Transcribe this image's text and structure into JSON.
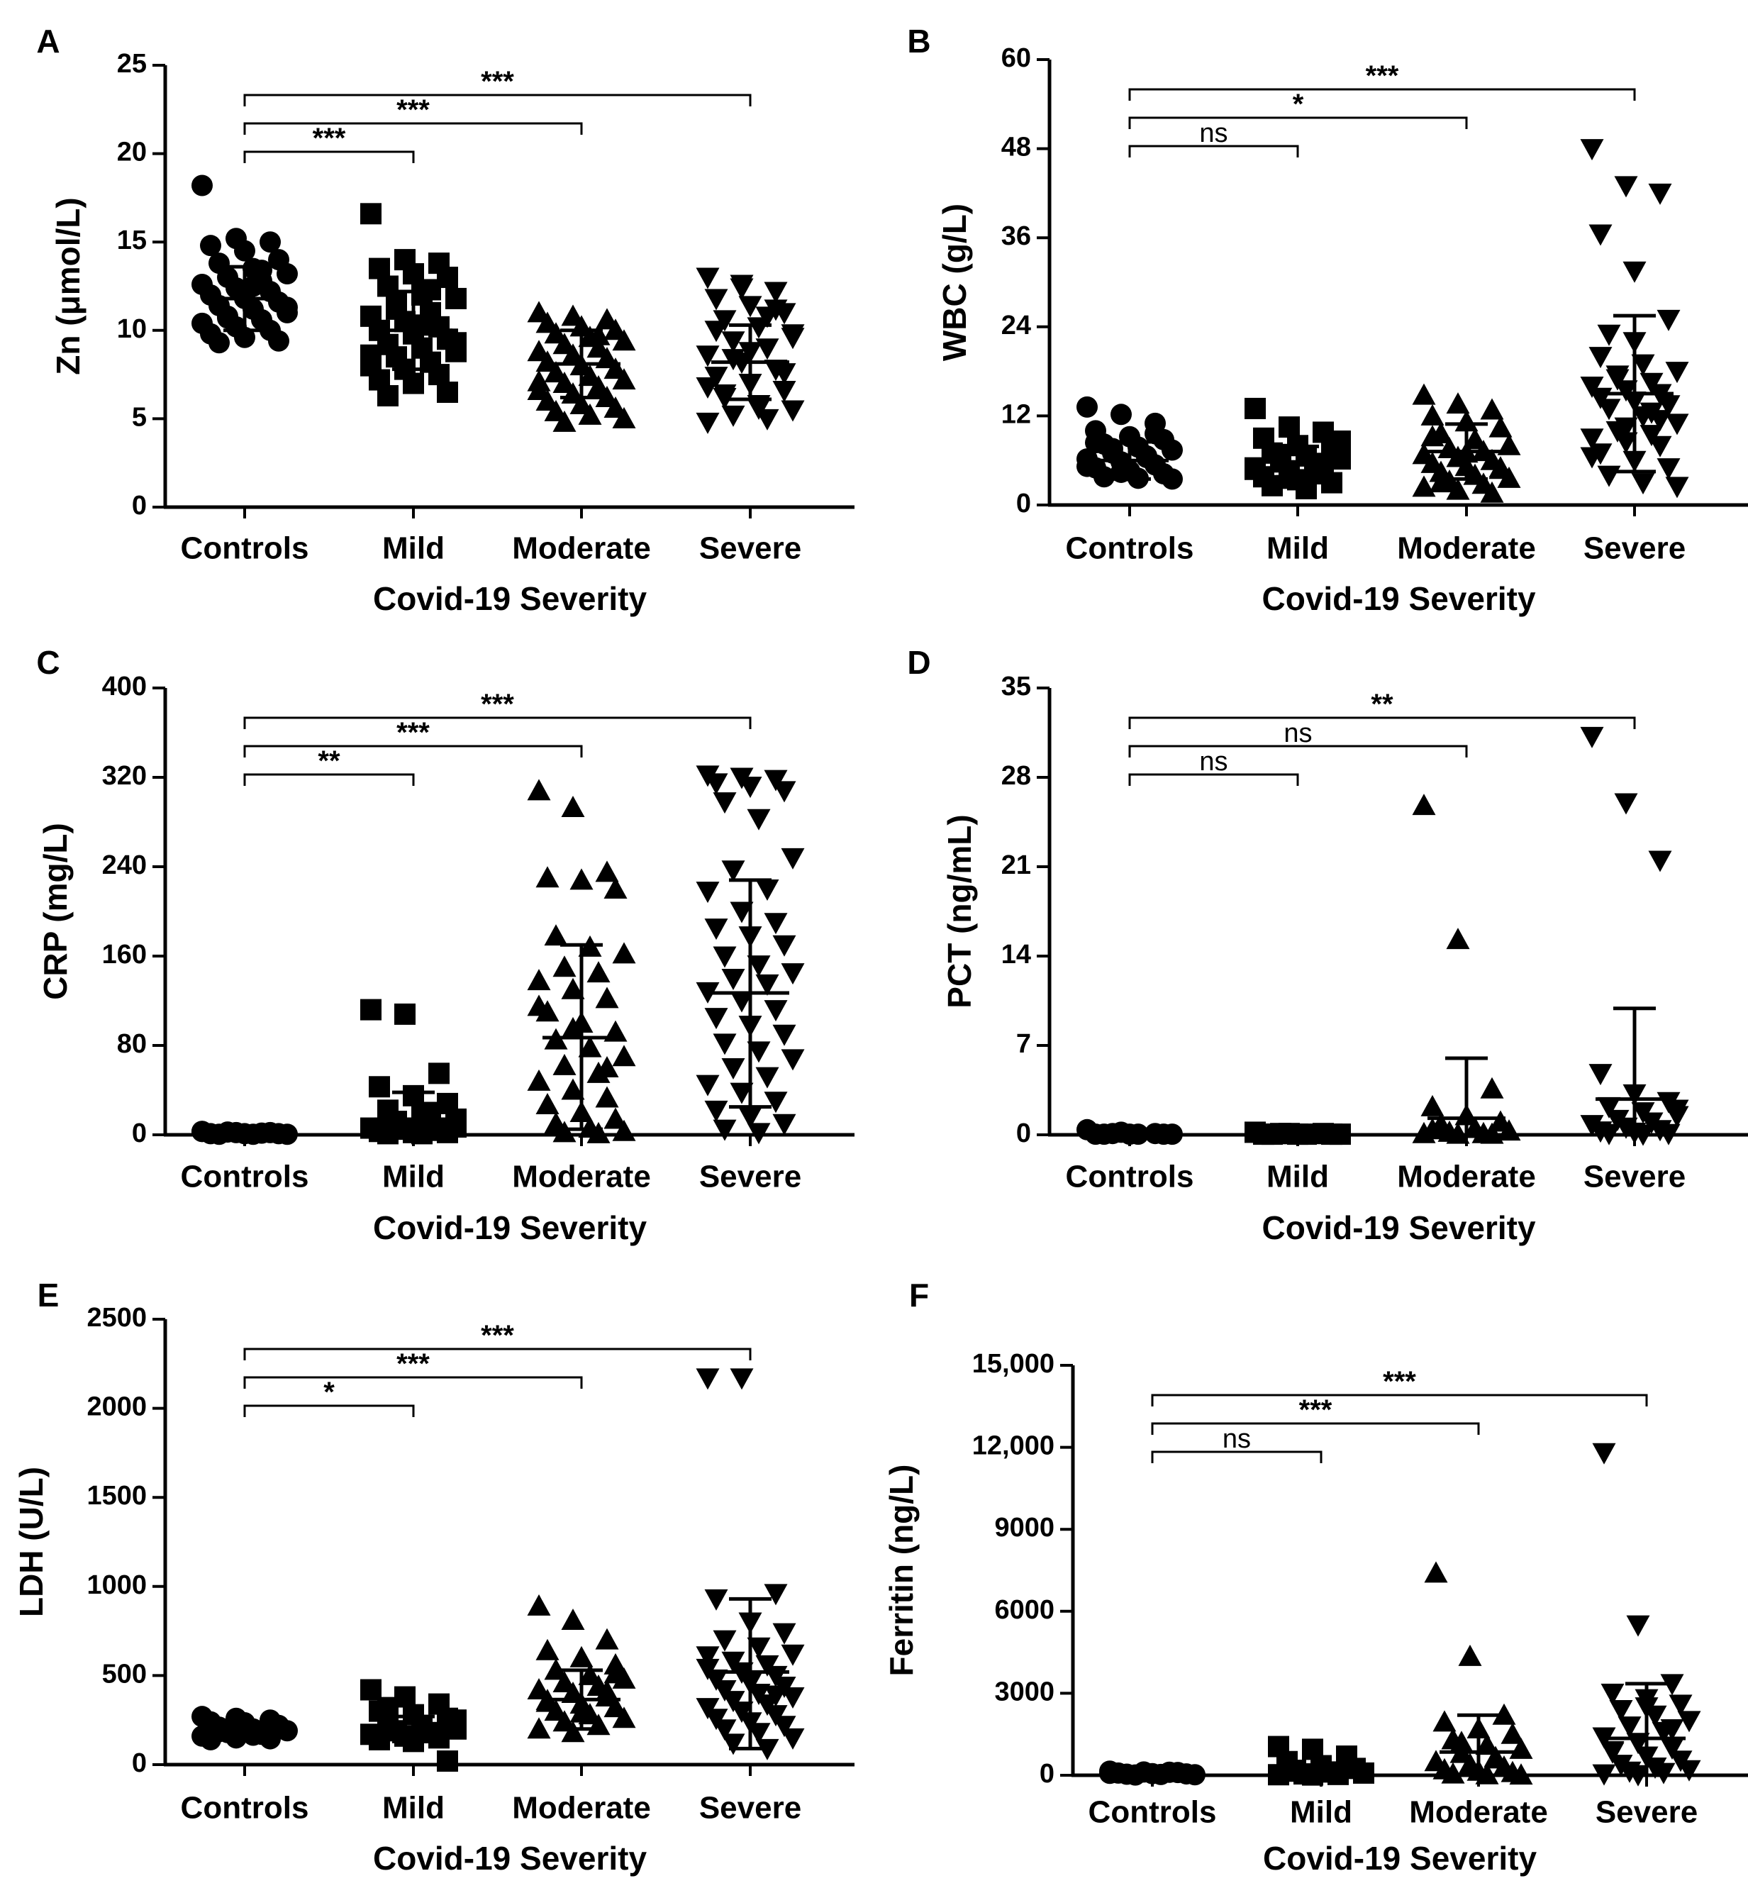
{
  "figure": {
    "panels": [
      {
        "letter": "A",
        "title": "Zn (μmol/L)",
        "xlabel": "Covid-19 Severity",
        "ylim": [
          0,
          25
        ],
        "yticks": [
          0,
          5,
          10,
          15,
          20,
          25
        ],
        "ytick_labels": [
          "0",
          "5",
          "10",
          "15",
          "20",
          "25"
        ]
      },
      {
        "letter": "B",
        "title": "WBC (g/L)",
        "xlabel": "Covid-19 Severity",
        "ylim": [
          0,
          60
        ],
        "yticks": [
          0,
          12,
          24,
          36,
          48,
          60
        ],
        "ytick_labels": [
          "0",
          "12",
          "24",
          "36",
          "48",
          "60"
        ]
      },
      {
        "letter": "C",
        "title": "CRP (mg/L)",
        "xlabel": "Covid-19 Severity",
        "ylim": [
          0,
          400
        ],
        "yticks": [
          0,
          80,
          160,
          240,
          320,
          400
        ],
        "ytick_labels": [
          "0",
          "80",
          "160",
          "240",
          "320",
          "400"
        ]
      },
      {
        "letter": "D",
        "title": "PCT (ng/mL)",
        "xlabel": "Covid-19 Severity",
        "ylim": [
          0,
          35
        ],
        "yticks": [
          0,
          7,
          14,
          21,
          28,
          35
        ],
        "ytick_labels": [
          "0",
          "7",
          "14",
          "21",
          "28",
          "35"
        ]
      },
      {
        "letter": "E",
        "title": "LDH (U/L)",
        "xlabel": "Covid-19 Severity",
        "ylim": [
          0,
          2500
        ],
        "yticks": [
          0,
          500,
          1000,
          1500,
          2000,
          2500
        ],
        "ytick_labels": [
          "0",
          "500",
          "1000",
          "1500",
          "2000",
          "2500"
        ]
      },
      {
        "letter": "F",
        "title": "Ferritin (ng/L)",
        "xlabel": "Covid-19 Severity",
        "ylim": [
          0,
          15000
        ],
        "yticks": [
          0,
          3000,
          6000,
          9000,
          12000,
          15000
        ],
        "ytick_labels": [
          "0",
          "3000",
          "6000",
          "9000",
          "12,000",
          "15,000"
        ]
      }
    ]
  },
  "chart_data": [
    {
      "type": "scatter",
      "panel": "A",
      "ylabel": "Zn (μmol/L)",
      "xlabel": "Covid-19 Severity",
      "categories": [
        "Controls",
        "Mild",
        "Moderate",
        "Severe"
      ],
      "markers": [
        "circle",
        "square",
        "triangle-up",
        "triangle-down"
      ],
      "ylim": [
        0,
        25
      ],
      "means": [
        11.8,
        10.0,
        8.1,
        8.2
      ],
      "error": [
        [
          10.0,
          13.6
        ],
        [
          7.8,
          12.2
        ],
        [
          6.2,
          10.0
        ],
        [
          6.1,
          10.3
        ]
      ],
      "points": [
        [
          18.2,
          15.2,
          15.0,
          14.8,
          14.5,
          14.0,
          13.8,
          13.5,
          13.2,
          13.0,
          12.8,
          12.6,
          12.4,
          12.2,
          12.0,
          11.8,
          11.6,
          11.4,
          11.2,
          11.0,
          10.8,
          10.6,
          10.4,
          10.2,
          10.0,
          9.8,
          9.6,
          9.4,
          9.3,
          12.5,
          11.3,
          10.7,
          13.4
        ],
        [
          16.6,
          14.0,
          13.8,
          13.5,
          13.2,
          13.0,
          12.5,
          12.0,
          11.8,
          11.5,
          11.0,
          10.8,
          10.5,
          10.2,
          10.0,
          9.8,
          9.5,
          9.2,
          9.0,
          8.8,
          8.5,
          8.2,
          8.0,
          7.8,
          7.5,
          7.2,
          7.0,
          6.5,
          6.3,
          10.3,
          9.3,
          11.2,
          12.3,
          8.6
        ],
        [
          11.0,
          10.8,
          10.6,
          10.4,
          10.2,
          10.0,
          9.8,
          9.6,
          9.4,
          9.2,
          9.0,
          8.8,
          8.6,
          8.4,
          8.2,
          8.0,
          7.8,
          7.6,
          7.4,
          7.2,
          7.0,
          6.8,
          6.6,
          6.4,
          6.2,
          6.0,
          5.8,
          5.6,
          5.4,
          5.2,
          5.0,
          4.8,
          9.7,
          7.1
        ],
        [
          13.0,
          12.6,
          12.2,
          11.8,
          11.4,
          11.0,
          10.6,
          10.2,
          9.8,
          9.4,
          9.0,
          8.6,
          8.2,
          7.8,
          7.4,
          7.0,
          6.6,
          6.2,
          5.8,
          5.5,
          5.2,
          5.0,
          4.8,
          12.4,
          11.2,
          10.0,
          8.8,
          7.6,
          6.4,
          5.6,
          9.6,
          8.4,
          10.8,
          6.8
        ]
      ],
      "comparisons": [
        {
          "groups": [
            "Controls",
            "Mild"
          ],
          "label": "***"
        },
        {
          "groups": [
            "Controls",
            "Moderate"
          ],
          "label": "***"
        },
        {
          "groups": [
            "Controls",
            "Severe"
          ],
          "label": "***"
        }
      ]
    },
    {
      "type": "scatter",
      "panel": "B",
      "ylabel": "WBC (g/L)",
      "xlabel": "Covid-19 Severity",
      "categories": [
        "Controls",
        "Mild",
        "Moderate",
        "Severe"
      ],
      "markers": [
        "circle",
        "square",
        "triangle-up",
        "triangle-down"
      ],
      "ylim": [
        0,
        60
      ],
      "means": [
        6.0,
        5.8,
        7.2,
        15.0
      ],
      "error": [
        [
          3.5,
          8.5
        ],
        [
          3.8,
          7.9
        ],
        [
          3.5,
          10.9
        ],
        [
          4.5,
          25.5
        ]
      ],
      "points": [
        [
          13.2,
          12.2,
          11.0,
          10.0,
          9.2,
          8.8,
          8.2,
          7.8,
          7.4,
          7.0,
          6.6,
          6.2,
          5.8,
          5.4,
          5.0,
          4.6,
          4.2,
          3.8,
          3.6,
          3.5,
          7.6,
          6.4,
          5.2,
          4.4,
          9.6,
          8.4
        ],
        [
          13.0,
          10.5,
          9.8,
          9.0,
          8.0,
          7.4,
          7.0,
          6.6,
          6.2,
          5.8,
          5.4,
          5.0,
          4.6,
          4.2,
          3.8,
          3.4,
          3.0,
          2.6,
          2.2,
          8.6,
          6.8,
          5.6,
          4.8,
          3.6
        ],
        [
          14.8,
          13.6,
          12.8,
          12.0,
          11.2,
          10.4,
          9.6,
          8.8,
          8.0,
          7.6,
          7.2,
          6.8,
          6.4,
          6.0,
          5.6,
          5.2,
          4.8,
          4.4,
          4.0,
          3.6,
          3.2,
          2.8,
          2.4,
          2.0,
          1.6,
          9.2,
          7.0,
          5.0,
          3.0
        ],
        [
          48.0,
          43.0,
          42.0,
          36.5,
          31.5,
          25.0,
          23.0,
          19.0,
          18.0,
          17.0,
          16.5,
          16.0,
          15.5,
          15.0,
          14.5,
          14.0,
          13.5,
          13.0,
          12.0,
          11.0,
          10.0,
          9.5,
          9.0,
          8.5,
          8.0,
          7.0,
          6.0,
          5.0,
          4.0,
          3.0,
          2.5,
          17.5,
          12.5,
          6.5,
          10.5,
          11.5,
          20.0,
          22.0
        ]
      ],
      "comparisons": [
        {
          "groups": [
            "Controls",
            "Mild"
          ],
          "label": "ns"
        },
        {
          "groups": [
            "Controls",
            "Moderate"
          ],
          "label": "*"
        },
        {
          "groups": [
            "Controls",
            "Severe"
          ],
          "label": "***"
        }
      ]
    },
    {
      "type": "scatter",
      "panel": "C",
      "ylabel": "CRP (mg/L)",
      "xlabel": "Covid-19 Severity",
      "categories": [
        "Controls",
        "Mild",
        "Moderate",
        "Severe"
      ],
      "markers": [
        "circle",
        "square",
        "triangle-up",
        "triangle-down"
      ],
      "ylim": [
        0,
        400
      ],
      "means": [
        1.5,
        14.0,
        87.0,
        127.0
      ],
      "error": [
        [
          0.5,
          2.5
        ],
        [
          0,
          38
        ],
        [
          5,
          170
        ],
        [
          25,
          228
        ]
      ],
      "points": [
        [
          3,
          2,
          2,
          1,
          1,
          1,
          0.5,
          0.5,
          0.5,
          2.5,
          1.5,
          3
        ],
        [
          112,
          108,
          55,
          43,
          35,
          28,
          22,
          18,
          14,
          10,
          8,
          6,
          5,
          4,
          3,
          2,
          2,
          1,
          1,
          7,
          12,
          20
        ],
        [
          308,
          293,
          235,
          230,
          228,
          220,
          178,
          168,
          162,
          150,
          145,
          138,
          130,
          122,
          110,
          100,
          92,
          85,
          78,
          70,
          62,
          55,
          48,
          40,
          33,
          27,
          20,
          14,
          10,
          6,
          3,
          2,
          1,
          115,
          95,
          60
        ],
        [
          322,
          320,
          318,
          315,
          312,
          308,
          298,
          283,
          248,
          237,
          220,
          218,
          200,
          190,
          185,
          178,
          170,
          160,
          152,
          145,
          140,
          135,
          128,
          120,
          112,
          105,
          98,
          90,
          82,
          75,
          68,
          60,
          52,
          45,
          38,
          30,
          22,
          16,
          10,
          5,
          2
        ]
      ],
      "comparisons": [
        {
          "groups": [
            "Controls",
            "Mild"
          ],
          "label": "**"
        },
        {
          "groups": [
            "Controls",
            "Moderate"
          ],
          "label": "***"
        },
        {
          "groups": [
            "Controls",
            "Severe"
          ],
          "label": "***"
        }
      ]
    },
    {
      "type": "scatter",
      "panel": "D",
      "ylabel": "PCT (ng/mL)",
      "xlabel": "Covid-19 Severity",
      "categories": [
        "Controls",
        "Mild",
        "Moderate",
        "Severe"
      ],
      "markers": [
        "circle",
        "square",
        "triangle-up",
        "triangle-down"
      ],
      "ylim": [
        0,
        35
      ],
      "means": [
        0.05,
        0.05,
        1.3,
        2.8
      ],
      "error": [
        [
          0,
          0.1
        ],
        [
          0,
          0.1
        ],
        [
          0,
          6.0
        ],
        [
          0,
          9.9
        ]
      ],
      "points": [
        [
          0.4,
          0.2,
          0.1,
          0.05,
          0.05,
          0.05,
          0.05,
          0.05,
          0.05,
          0.1
        ],
        [
          0.2,
          0.1,
          0.1,
          0.05,
          0.05,
          0.05,
          0.05,
          0.05,
          0.05,
          0.1
        ],
        [
          25.8,
          15.3,
          3.6,
          2.2,
          1.5,
          1.0,
          0.8,
          0.5,
          0.3,
          0.2,
          0.1,
          0.1,
          0.05,
          0.05,
          0.4
        ],
        [
          31.2,
          26.0,
          21.5,
          4.8,
          3.2,
          2.6,
          2.2,
          1.8,
          1.5,
          1.2,
          1.0,
          0.8,
          0.6,
          0.4,
          0.3,
          0.2,
          0.1,
          0.1,
          0.05,
          2.0
        ]
      ],
      "comparisons": [
        {
          "groups": [
            "Controls",
            "Mild"
          ],
          "label": "ns"
        },
        {
          "groups": [
            "Controls",
            "Moderate"
          ],
          "label": "ns"
        },
        {
          "groups": [
            "Controls",
            "Severe"
          ],
          "label": "**"
        }
      ]
    },
    {
      "type": "scatter",
      "panel": "E",
      "ylabel": "LDH (U/L)",
      "xlabel": "Covid-19 Severity",
      "categories": [
        "Controls",
        "Mild",
        "Moderate",
        "Severe"
      ],
      "markers": [
        "circle",
        "square",
        "triangle-up",
        "triangle-down"
      ],
      "ylim": [
        0,
        2500
      ],
      "means": [
        180,
        200,
        365,
        520
      ],
      "error": [
        [
          140,
          220
        ],
        [
          130,
          270
        ],
        [
          200,
          530
        ],
        [
          90,
          930
        ]
      ],
      "points": [
        [
          270,
          260,
          250,
          240,
          230,
          220,
          210,
          200,
          190,
          180,
          170,
          160,
          150,
          145,
          140,
          235,
          205,
          185,
          165
        ],
        [
          420,
          380,
          340,
          300,
          280,
          260,
          240,
          220,
          200,
          190,
          180,
          170,
          160,
          150,
          140,
          130,
          20,
          320,
          210,
          250
        ],
        [
          890,
          810,
          700,
          640,
          600,
          560,
          530,
          500,
          480,
          460,
          440,
          420,
          400,
          380,
          360,
          340,
          320,
          300,
          280,
          260,
          240,
          220,
          200,
          180,
          410,
          350,
          290,
          510
        ],
        [
          2170,
          2170,
          960,
          930,
          800,
          740,
          700,
          660,
          620,
          580,
          560,
          540,
          520,
          500,
          480,
          460,
          440,
          420,
          400,
          380,
          360,
          340,
          320,
          300,
          280,
          260,
          240,
          220,
          200,
          180,
          150,
          120,
          90,
          610,
          520,
          390
        ]
      ],
      "comparisons": [
        {
          "groups": [
            "Controls",
            "Mild"
          ],
          "label": "*"
        },
        {
          "groups": [
            "Controls",
            "Moderate"
          ],
          "label": "***"
        },
        {
          "groups": [
            "Controls",
            "Severe"
          ],
          "label": "***"
        }
      ]
    },
    {
      "type": "scatter",
      "panel": "F",
      "ylabel": "Ferritin (ng/L)",
      "xlabel": "Covid-19 Severity",
      "categories": [
        "Controls",
        "Mild",
        "Moderate",
        "Severe"
      ],
      "markers": [
        "circle",
        "square",
        "triangle-up",
        "triangle-down"
      ],
      "ylim": [
        0,
        15000
      ],
      "means": [
        50,
        150,
        850,
        1350
      ],
      "error": [
        [
          20,
          80
        ],
        [
          0,
          300
        ],
        [
          0,
          2200
        ],
        [
          0,
          3350
        ]
      ],
      "points": [
        [
          150,
          120,
          100,
          80,
          60,
          50,
          40,
          30,
          20,
          10,
          110,
          70
        ],
        [
          1050,
          950,
          700,
          500,
          350,
          250,
          180,
          120,
          80,
          50,
          30,
          20,
          10,
          400,
          150
        ],
        [
          7400,
          4350,
          2200,
          1950,
          1700,
          1500,
          1300,
          1100,
          950,
          800,
          650,
          500,
          400,
          300,
          200,
          150,
          100,
          50,
          20,
          10,
          1200,
          600
        ],
        [
          11800,
          5500,
          3350,
          3000,
          2800,
          2600,
          2400,
          2200,
          2000,
          1800,
          1600,
          1400,
          1200,
          1000,
          850,
          700,
          550,
          400,
          300,
          200,
          150,
          100,
          50,
          20,
          1700,
          900,
          2500
        ]
      ],
      "comparisons": [
        {
          "groups": [
            "Controls",
            "Mild"
          ],
          "label": "ns"
        },
        {
          "groups": [
            "Controls",
            "Moderate"
          ],
          "label": "***"
        },
        {
          "groups": [
            "Controls",
            "Severe"
          ],
          "label": "***"
        }
      ]
    }
  ]
}
